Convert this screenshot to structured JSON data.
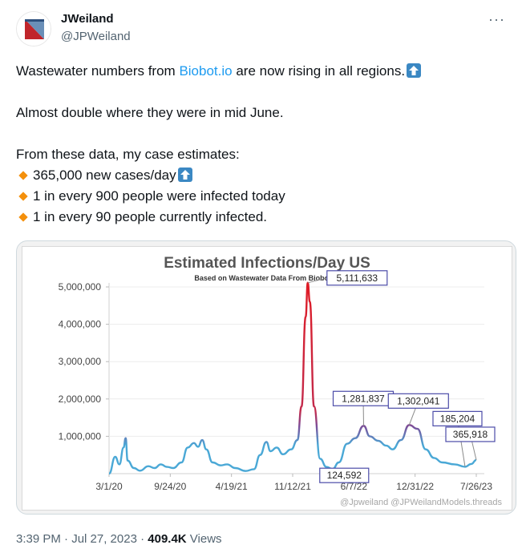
{
  "author": {
    "name": "JWeiland",
    "handle": "@JPWeiland"
  },
  "tweet": {
    "line1_pre": "Wastewater numbers from ",
    "line1_link": "Biobot.io",
    "line1_post": " are now rising in all regions.",
    "line2": "Almost double where they were in mid June.",
    "line3": "From these data, my case estimates:",
    "bullets": [
      "365,000 new cases/day",
      "1 in every 900 people were infected today",
      "1 in every 90 people currently infected."
    ]
  },
  "footer": {
    "time": "3:39 PM · Jul 27, 2023 · ",
    "views": "409.4K",
    "views_label": " Views"
  },
  "icons": {
    "more": "more-horizontal-icon",
    "up": "up-arrow-button-emoji",
    "bullet": "orange-diamond-emoji"
  },
  "colors": {
    "link": "#1d9bf0",
    "line_low": "#4aa8d6",
    "line_high": "#e01b24",
    "box_border": "#4b4ba8"
  },
  "chart_data": {
    "type": "line",
    "title": "Estimated Infections/Day US",
    "subtitle": "Based on Wastewater Data From Biobot.io",
    "ylim": [
      0,
      5000000
    ],
    "yticks": [
      "5,000,000",
      "4,000,000",
      "3,000,000",
      "2,000,000",
      "1,000,000"
    ],
    "xticks": [
      "3/1/20",
      "9/24/20",
      "4/19/21",
      "11/12/21",
      "6/7/22",
      "12/31/22",
      "7/26/23"
    ],
    "x_start": "3/1/20",
    "x_end": "7/26/23",
    "series": [
      {
        "values": [
          [
            "2020-03-01",
            0
          ],
          [
            "2020-03-22",
            450000
          ],
          [
            "2020-04-05",
            250000
          ],
          [
            "2020-04-19",
            700000
          ],
          [
            "2020-04-26",
            950000
          ],
          [
            "2020-05-03",
            350000
          ],
          [
            "2020-05-24",
            150000
          ],
          [
            "2020-06-14",
            80000
          ],
          [
            "2020-07-12",
            200000
          ],
          [
            "2020-08-02",
            150000
          ],
          [
            "2020-08-23",
            250000
          ],
          [
            "2020-09-13",
            180000
          ],
          [
            "2020-10-04",
            150000
          ],
          [
            "2020-11-01",
            300000
          ],
          [
            "2020-11-22",
            700000
          ],
          [
            "2020-12-13",
            820000
          ],
          [
            "2020-12-27",
            720000
          ],
          [
            "2021-01-10",
            900000
          ],
          [
            "2021-01-24",
            650000
          ],
          [
            "2021-02-14",
            300000
          ],
          [
            "2021-03-14",
            220000
          ],
          [
            "2021-04-04",
            250000
          ],
          [
            "2021-05-02",
            150000
          ],
          [
            "2021-06-06",
            70000
          ],
          [
            "2021-07-04",
            120000
          ],
          [
            "2021-07-25",
            500000
          ],
          [
            "2021-08-15",
            850000
          ],
          [
            "2021-08-29",
            600000
          ],
          [
            "2021-09-19",
            700000
          ],
          [
            "2021-10-10",
            520000
          ],
          [
            "2021-11-07",
            650000
          ],
          [
            "2021-11-28",
            900000
          ],
          [
            "2021-12-12",
            1800000
          ],
          [
            "2021-12-26",
            4200000
          ],
          [
            "2022-01-02",
            5111633
          ],
          [
            "2022-01-09",
            4600000
          ],
          [
            "2022-01-23",
            1800000
          ],
          [
            "2022-02-13",
            400000
          ],
          [
            "2022-03-06",
            180000
          ],
          [
            "2022-03-27",
            124592
          ],
          [
            "2022-04-17",
            300000
          ],
          [
            "2022-05-15",
            800000
          ],
          [
            "2022-06-12",
            950000
          ],
          [
            "2022-07-10",
            1281837
          ],
          [
            "2022-07-31",
            1000000
          ],
          [
            "2022-08-28",
            880000
          ],
          [
            "2022-09-25",
            750000
          ],
          [
            "2022-10-16",
            650000
          ],
          [
            "2022-11-13",
            900000
          ],
          [
            "2022-12-11",
            1302041
          ],
          [
            "2023-01-08",
            1200000
          ],
          [
            "2023-02-05",
            650000
          ],
          [
            "2023-03-05",
            420000
          ],
          [
            "2023-04-02",
            300000
          ],
          [
            "2023-05-14",
            250000
          ],
          [
            "2023-06-18",
            185204
          ],
          [
            "2023-07-09",
            260000
          ],
          [
            "2023-07-26",
            365918
          ]
        ]
      }
    ],
    "annotations": [
      {
        "label": "5,111,633",
        "date": "2022-01-02",
        "value": 5111633
      },
      {
        "label": "124,592",
        "date": "2022-03-27",
        "value": 124592
      },
      {
        "label": "1,281,837",
        "date": "2022-07-10",
        "value": 1281837
      },
      {
        "label": "1,302,041",
        "date": "2022-12-11",
        "value": 1302041
      },
      {
        "label": "185,204",
        "date": "2023-06-18",
        "value": 185204
      },
      {
        "label": "365,918",
        "date": "2023-07-26",
        "value": 365918
      }
    ],
    "watermark": "@Jpweiland @JPWeilandModels.threads"
  }
}
